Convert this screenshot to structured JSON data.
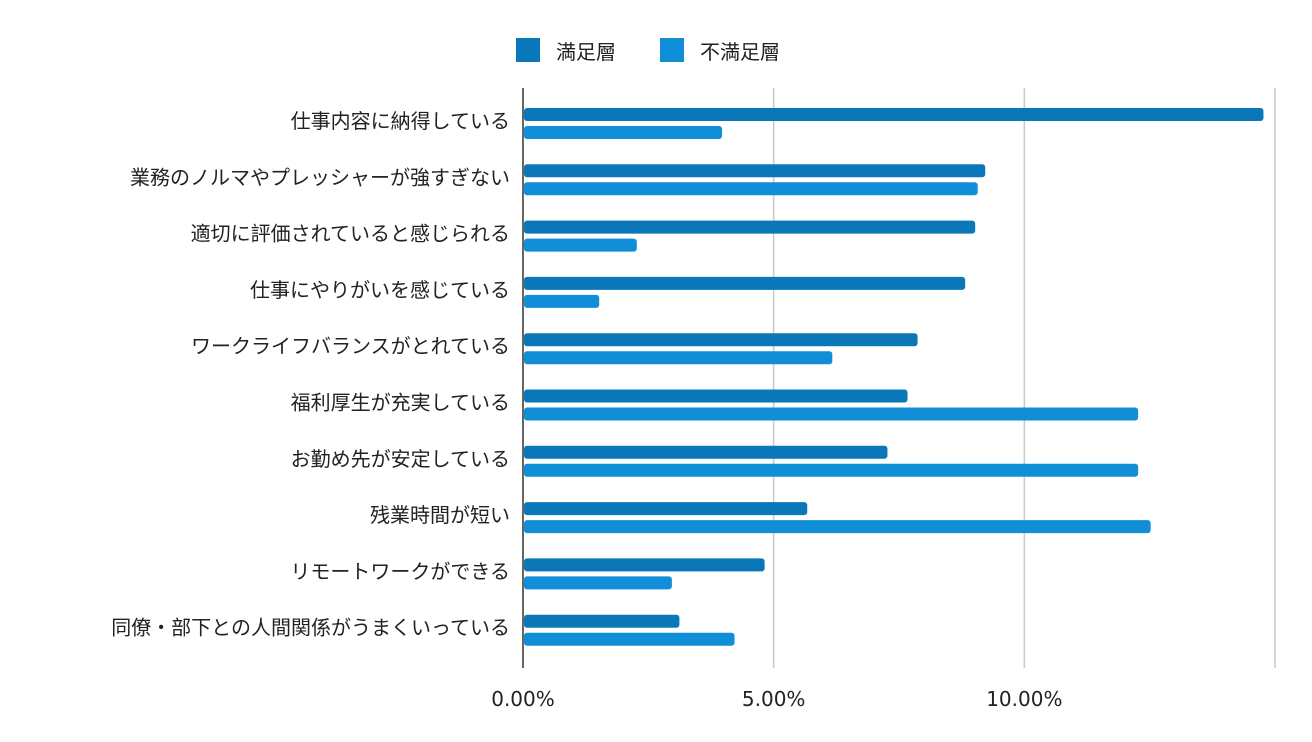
{
  "chart_data": {
    "type": "bar",
    "orientation": "horizontal",
    "title": "",
    "xlabel": "",
    "ylabel": "",
    "categories": [
      "仕事内容に納得している",
      "業務のノルマやプレッシャーが強すぎない",
      "適切に評価されていると感じられる",
      "仕事にやりがいを感じている",
      "ワークライフバランスがとれている",
      "福利厚生が充実している",
      "お勤め先が安定している",
      "残業時間が短い",
      "リモートワークができる",
      "同僚・部下との人間関係がうまくいっている"
    ],
    "series": [
      {
        "name": "満足層",
        "color": "#0a78b8",
        "values": [
          14.75,
          9.2,
          9.0,
          8.8,
          7.85,
          7.65,
          7.25,
          5.65,
          4.8,
          3.1
        ]
      },
      {
        "name": "不満足層",
        "color": "#108fd8",
        "values": [
          3.95,
          9.05,
          2.25,
          1.5,
          6.15,
          12.25,
          12.25,
          12.5,
          2.95,
          4.2
        ]
      }
    ],
    "xlim": [
      0,
      15
    ],
    "xticks": [
      0,
      5,
      10,
      15
    ],
    "xtick_labels": [
      "0.00%",
      "5.00%",
      "10.00%",
      ""
    ],
    "grid": true,
    "legend_position": "top-center"
  }
}
